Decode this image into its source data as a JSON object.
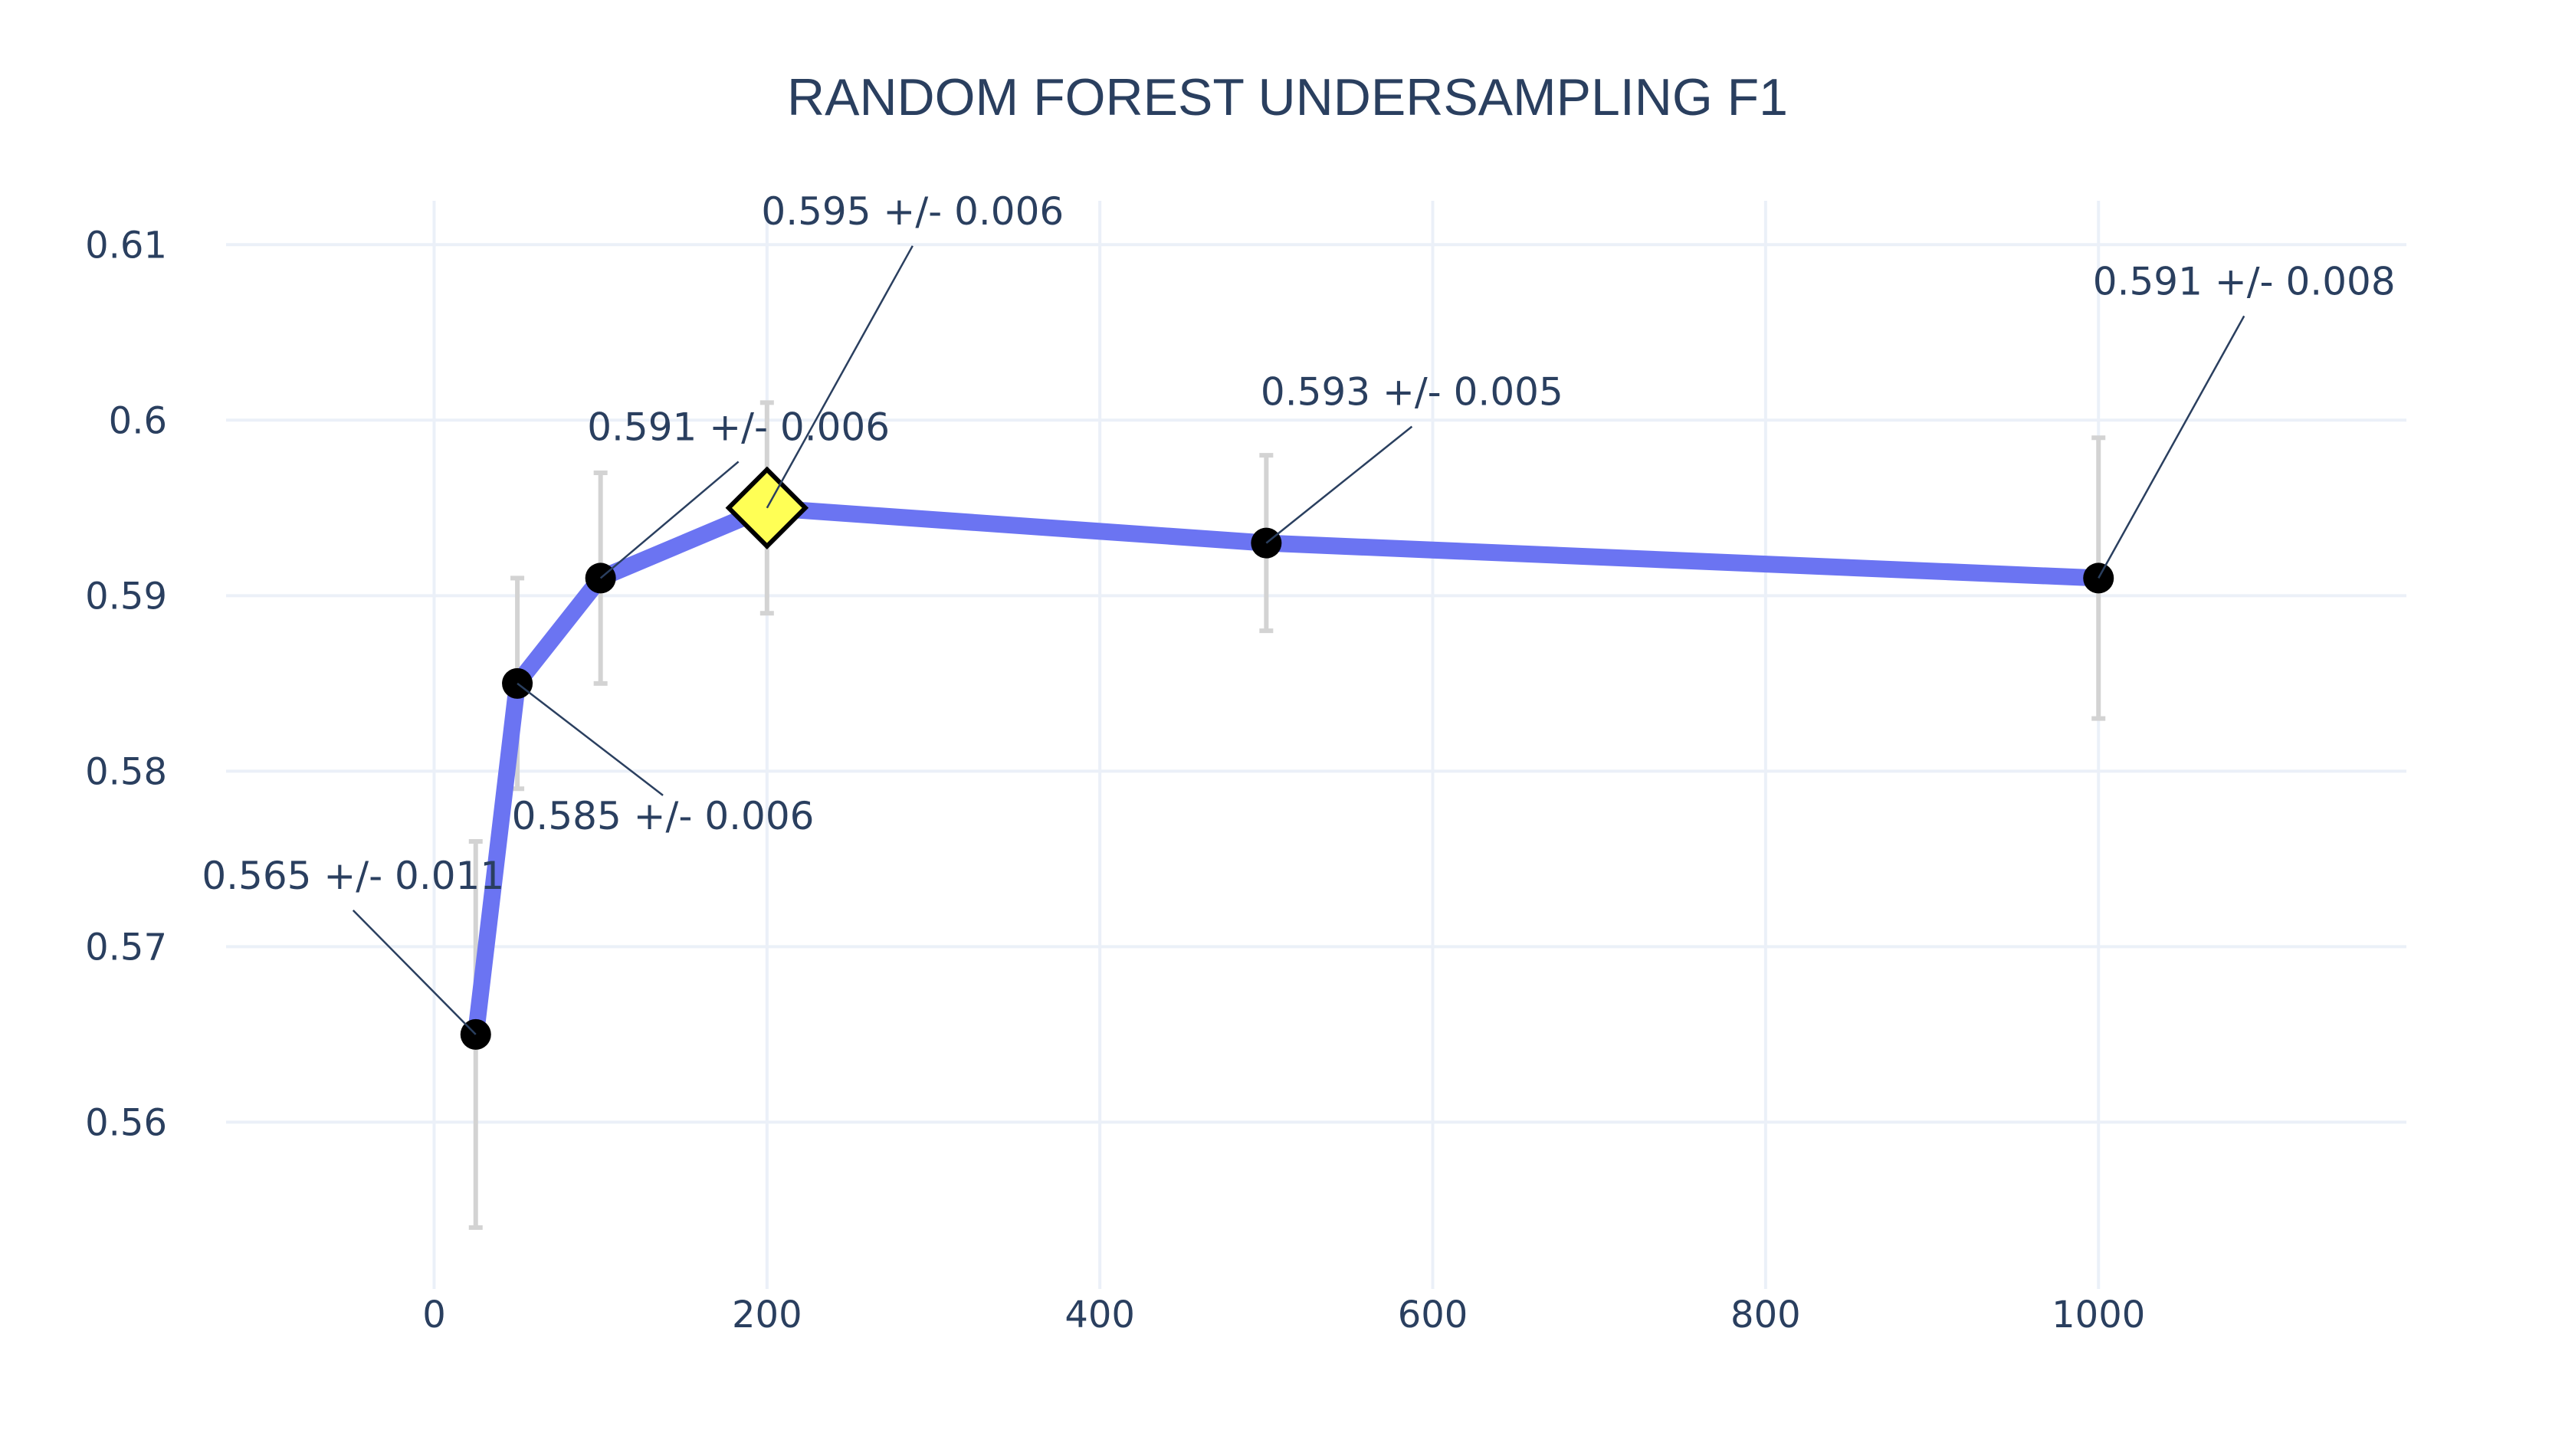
{
  "chart_data": {
    "type": "line",
    "title": "RANDOM FOREST UNDERSAMPLING F1",
    "xlabel": "",
    "ylabel": "",
    "xlim": [
      -125,
      1185
    ],
    "ylim": [
      0.5505,
      0.6125
    ],
    "x_ticks": [
      0,
      200,
      400,
      600,
      800,
      1000
    ],
    "y_ticks": [
      0.56,
      0.57,
      0.58,
      0.59,
      0.6,
      0.61
    ],
    "x_tick_labels": [
      "0",
      "200",
      "400",
      "600",
      "800",
      "1000"
    ],
    "y_tick_labels": [
      "0.56",
      "0.57",
      "0.58",
      "0.59",
      "0.6",
      "0.61"
    ],
    "grid": true,
    "series": [
      {
        "x": [
          25,
          50,
          100,
          200,
          500,
          1000
        ],
        "y": [
          0.565,
          0.585,
          0.591,
          0.595,
          0.593,
          0.591
        ],
        "error": [
          0.011,
          0.006,
          0.006,
          0.006,
          0.005,
          0.008
        ],
        "labels": [
          "0.565 +/- 0.011",
          "0.585 +/- 0.006",
          "0.591 +/- 0.006",
          "0.595 +/- 0.006",
          "0.593 +/- 0.005",
          "0.591 +/- 0.008"
        ],
        "best_index": 3
      }
    ],
    "colors": {
      "line": "#6b74f2",
      "marker": "#000000",
      "best_marker": "#ffff55",
      "error_bar": "#d3d3d3",
      "grid": "#ebf0f8",
      "text": "#2a3f5f"
    }
  }
}
